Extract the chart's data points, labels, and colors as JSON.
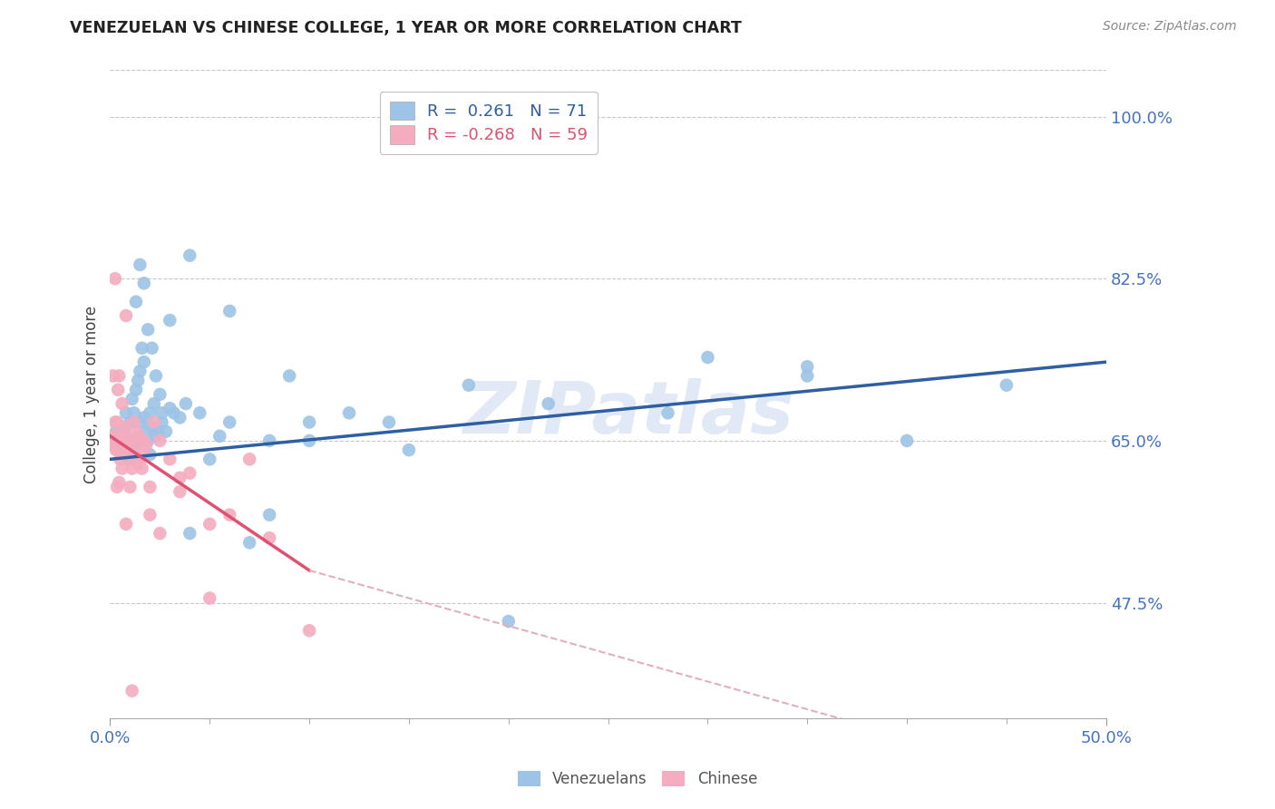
{
  "title": "VENEZUELAN VS CHINESE COLLEGE, 1 YEAR OR MORE CORRELATION CHART",
  "source_text": "Source: ZipAtlas.com",
  "xlim": [
    0.0,
    50.0
  ],
  "ylim": [
    35.0,
    105.0
  ],
  "yticks": [
    47.5,
    65.0,
    82.5,
    100.0
  ],
  "r_venezuelan": 0.261,
  "n_venezuelan": 71,
  "r_chinese": -0.268,
  "n_chinese": 59,
  "color_venezuelan": "#9dc3e6",
  "color_chinese": "#f4acbe",
  "trend_color_venezuelan": "#2e5fa3",
  "trend_color_chinese": "#e05070",
  "trend_color_chinese_dashed": "#e0b0bc",
  "watermark": "ZIPatlas",
  "venezuelan_x": [
    0.2,
    0.3,
    0.4,
    0.5,
    0.6,
    0.7,
    0.8,
    0.9,
    1.0,
    1.0,
    1.1,
    1.1,
    1.2,
    1.2,
    1.3,
    1.4,
    1.4,
    1.5,
    1.5,
    1.6,
    1.6,
    1.7,
    1.7,
    1.8,
    1.9,
    2.0,
    2.0,
    2.1,
    2.2,
    2.3,
    2.4,
    2.5,
    2.6,
    2.8,
    3.0,
    3.2,
    3.5,
    3.8,
    4.0,
    4.5,
    5.0,
    5.5,
    6.0,
    7.0,
    8.0,
    9.0,
    10.0,
    12.0,
    14.0,
    18.0,
    22.0,
    28.0,
    30.0,
    35.0,
    40.0,
    45.0,
    1.3,
    1.5,
    1.7,
    1.9,
    2.1,
    2.3,
    2.6,
    3.0,
    4.0,
    6.0,
    8.0,
    10.0,
    15.0,
    20.0,
    35.0
  ],
  "venezuelan_y": [
    65.5,
    66.0,
    64.0,
    65.0,
    63.5,
    66.0,
    68.0,
    65.0,
    67.0,
    63.0,
    69.5,
    65.0,
    68.0,
    64.0,
    70.5,
    65.0,
    71.5,
    67.0,
    72.5,
    65.0,
    75.0,
    67.5,
    73.5,
    66.0,
    65.0,
    68.0,
    63.5,
    66.5,
    69.0,
    65.5,
    66.0,
    70.0,
    67.0,
    66.0,
    68.5,
    68.0,
    67.5,
    69.0,
    55.0,
    68.0,
    63.0,
    65.5,
    67.0,
    54.0,
    57.0,
    72.0,
    65.0,
    68.0,
    67.0,
    71.0,
    69.0,
    68.0,
    74.0,
    72.0,
    65.0,
    71.0,
    80.0,
    84.0,
    82.0,
    77.0,
    75.0,
    72.0,
    68.0,
    78.0,
    85.0,
    79.0,
    65.0,
    67.0,
    64.0,
    45.5,
    73.0
  ],
  "chinese_x": [
    0.1,
    0.15,
    0.2,
    0.25,
    0.3,
    0.35,
    0.4,
    0.45,
    0.5,
    0.55,
    0.6,
    0.65,
    0.7,
    0.75,
    0.8,
    0.9,
    1.0,
    1.1,
    1.2,
    1.3,
    1.4,
    1.5,
    1.6,
    1.7,
    1.8,
    2.0,
    2.2,
    2.5,
    3.0,
    3.5,
    4.0,
    5.0,
    6.0,
    7.0,
    8.0,
    10.0,
    0.2,
    0.3,
    0.4,
    0.5,
    0.6,
    0.7,
    0.8,
    0.9,
    1.0,
    1.1,
    1.2,
    1.4,
    1.7,
    2.0,
    2.5,
    3.5,
    5.0,
    0.25,
    0.35,
    0.45,
    0.65,
    0.85,
    1.1
  ],
  "chinese_y": [
    65.0,
    72.0,
    65.5,
    82.5,
    64.0,
    67.0,
    70.5,
    72.0,
    63.0,
    65.0,
    69.0,
    64.0,
    66.5,
    64.5,
    78.5,
    65.0,
    63.5,
    65.0,
    67.0,
    66.0,
    65.5,
    63.0,
    62.0,
    65.0,
    64.5,
    60.0,
    67.0,
    65.0,
    63.0,
    61.0,
    61.5,
    56.0,
    57.0,
    63.0,
    54.5,
    44.5,
    65.5,
    64.5,
    65.0,
    64.0,
    62.0,
    65.5,
    56.0,
    63.0,
    60.0,
    62.0,
    64.0,
    62.5,
    64.0,
    57.0,
    55.0,
    59.5,
    48.0,
    67.0,
    60.0,
    60.5,
    65.5,
    65.0,
    38.0
  ],
  "vline_start_x": 0.0,
  "vline_end_x": 50.0,
  "cline_solid_end_x": 10.0,
  "cline_dash_end_x": 50.0
}
